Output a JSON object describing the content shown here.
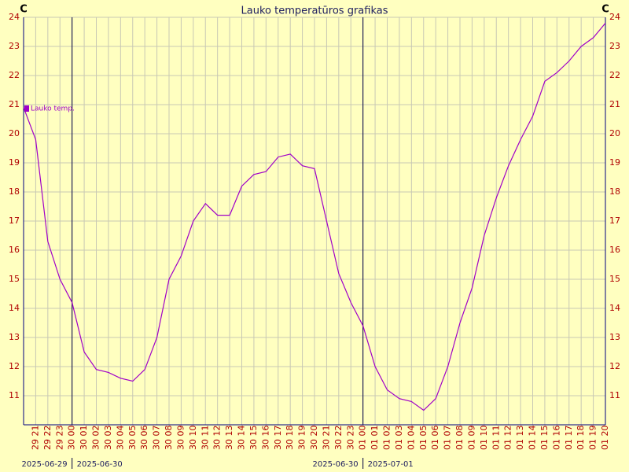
{
  "chart_data": {
    "type": "line",
    "title": "Lauko temperatūros grafikas",
    "y_unit": "C",
    "x": [
      "2025-06-29 20:00",
      "2025-06-29 21:00",
      "2025-06-29 22:00",
      "2025-06-29 23:00",
      "2025-06-30 00:00",
      "2025-06-30 01:00",
      "2025-06-30 02:00",
      "2025-06-30 03:00",
      "2025-06-30 04:00",
      "2025-06-30 05:00",
      "2025-06-30 06:00",
      "2025-06-30 07:00",
      "2025-06-30 08:00",
      "2025-06-30 09:00",
      "2025-06-30 10:00",
      "2025-06-30 11:00",
      "2025-06-30 12:00",
      "2025-06-30 13:00",
      "2025-06-30 14:00",
      "2025-06-30 15:00",
      "2025-06-30 16:00",
      "2025-06-30 17:00",
      "2025-06-30 18:00",
      "2025-06-30 19:00",
      "2025-06-30 20:00",
      "2025-06-30 21:00",
      "2025-06-30 22:00",
      "2025-06-30 23:00",
      "2025-07-01 00:00",
      "2025-07-01 01:00",
      "2025-07-01 02:00",
      "2025-07-01 03:00",
      "2025-07-01 04:00",
      "2025-07-01 05:00",
      "2025-07-01 06:00",
      "2025-07-01 07:00",
      "2025-07-01 08:00",
      "2025-07-01 09:00",
      "2025-07-01 10:00",
      "2025-07-01 11:00",
      "2025-07-01 12:00",
      "2025-07-01 13:00",
      "2025-07-01 14:00",
      "2025-07-01 15:00",
      "2025-07-01 16:00",
      "2025-07-01 17:00",
      "2025-07-01 18:00",
      "2025-07-01 19:00",
      "2025-07-01 20:00"
    ],
    "series": [
      {
        "name": "Lauko temp.",
        "color": "#a000c8",
        "values": [
          20.9,
          19.8,
          16.3,
          15.0,
          14.2,
          12.5,
          11.9,
          11.8,
          11.6,
          11.5,
          11.9,
          13.0,
          15.0,
          15.8,
          17.0,
          17.6,
          17.2,
          17.2,
          18.2,
          18.6,
          18.7,
          19.2,
          19.3,
          18.9,
          18.8,
          17.0,
          15.2,
          14.2,
          13.4,
          12.0,
          11.2,
          10.9,
          10.8,
          10.5,
          10.9,
          12.0,
          13.5,
          14.7,
          16.5,
          17.8,
          18.9,
          19.8,
          20.6,
          21.8,
          22.1,
          22.5,
          23.0,
          23.3,
          23.8
        ]
      }
    ],
    "xlim": [
      "2025-06-29 20:00",
      "2025-07-01 20:00"
    ],
    "xticks": [
      {
        "value": "2025-06-29 21:00",
        "label": "29 21"
      },
      {
        "value": "2025-06-29 22:00",
        "label": "29 22"
      },
      {
        "value": "2025-06-29 23:00",
        "label": "29 23"
      },
      {
        "value": "2025-06-30 00:00",
        "label": "30 00"
      },
      {
        "value": "2025-06-30 01:00",
        "label": "30 01"
      },
      {
        "value": "2025-06-30 02:00",
        "label": "30 02"
      },
      {
        "value": "2025-06-30 03:00",
        "label": "30 03"
      },
      {
        "value": "2025-06-30 04:00",
        "label": "30 04"
      },
      {
        "value": "2025-06-30 05:00",
        "label": "30 05"
      },
      {
        "value": "2025-06-30 06:00",
        "label": "30 06"
      },
      {
        "value": "2025-06-30 07:00",
        "label": "30 07"
      },
      {
        "value": "2025-06-30 08:00",
        "label": "30 08"
      },
      {
        "value": "2025-06-30 09:00",
        "label": "30 09"
      },
      {
        "value": "2025-06-30 10:00",
        "label": "30 10"
      },
      {
        "value": "2025-06-30 11:00",
        "label": "30 11"
      },
      {
        "value": "2025-06-30 12:00",
        "label": "30 12"
      },
      {
        "value": "2025-06-30 13:00",
        "label": "30 13"
      },
      {
        "value": "2025-06-30 14:00",
        "label": "30 14"
      },
      {
        "value": "2025-06-30 15:00",
        "label": "30 15"
      },
      {
        "value": "2025-06-30 16:00",
        "label": "30 16"
      },
      {
        "value": "2025-06-30 17:00",
        "label": "30 17"
      },
      {
        "value": "2025-06-30 18:00",
        "label": "30 18"
      },
      {
        "value": "2025-06-30 19:00",
        "label": "30 19"
      },
      {
        "value": "2025-06-30 20:00",
        "label": "30 20"
      },
      {
        "value": "2025-06-30 21:00",
        "label": "30 21"
      },
      {
        "value": "2025-06-30 22:00",
        "label": "30 22"
      },
      {
        "value": "2025-06-30 23:00",
        "label": "30 23"
      },
      {
        "value": "2025-07-01 00:00",
        "label": "01 00"
      },
      {
        "value": "2025-07-01 01:00",
        "label": "01 01"
      },
      {
        "value": "2025-07-01 02:00",
        "label": "01 02"
      },
      {
        "value": "2025-07-01 03:00",
        "label": "01 03"
      },
      {
        "value": "2025-07-01 04:00",
        "label": "01 04"
      },
      {
        "value": "2025-07-01 05:00",
        "label": "01 05"
      },
      {
        "value": "2025-07-01 06:00",
        "label": "01 06"
      },
      {
        "value": "2025-07-01 07:00",
        "label": "01 07"
      },
      {
        "value": "2025-07-01 08:00",
        "label": "01 08"
      },
      {
        "value": "2025-07-01 09:00",
        "label": "01 09"
      },
      {
        "value": "2025-07-01 10:00",
        "label": "01 10"
      },
      {
        "value": "2025-07-01 11:00",
        "label": "01 11"
      },
      {
        "value": "2025-07-01 12:00",
        "label": "01 12"
      },
      {
        "value": "2025-07-01 13:00",
        "label": "01 13"
      },
      {
        "value": "2025-07-01 14:00",
        "label": "01 14"
      },
      {
        "value": "2025-07-01 15:00",
        "label": "01 15"
      },
      {
        "value": "2025-07-01 16:00",
        "label": "01 16"
      },
      {
        "value": "2025-07-01 17:00",
        "label": "01 17"
      },
      {
        "value": "2025-07-01 18:00",
        "label": "01 18"
      },
      {
        "value": "2025-07-01 19:00",
        "label": "01 19"
      },
      {
        "value": "2025-07-01 20:00",
        "label": "01 20"
      }
    ],
    "ylim": [
      10,
      24
    ],
    "yticks": [
      11,
      12,
      13,
      14,
      15,
      16,
      17,
      18,
      19,
      20,
      21,
      22,
      23,
      24
    ],
    "grid": true,
    "legend": "top-left",
    "day_marks": [
      {
        "at": "2025-06-30 00:00",
        "before": "2025-06-29",
        "after": "2025-06-30"
      },
      {
        "at": "2025-07-01 00:00",
        "before": "2025-06-30",
        "after": "2025-07-01"
      }
    ]
  }
}
